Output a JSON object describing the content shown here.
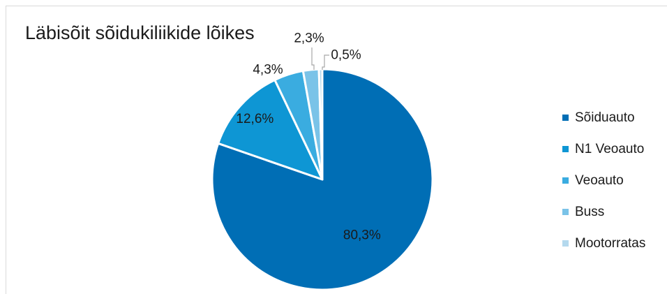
{
  "chart_data": {
    "type": "pie",
    "title": "Läbisõit sõidukiliikide lõikes",
    "categories": [
      "Sõiduauto",
      "N1 Veoauto",
      "Veoauto",
      "Buss",
      "Mootorratas"
    ],
    "values": [
      80.3,
      12.6,
      4.3,
      2.3,
      0.5
    ],
    "labels": [
      "80,3%",
      "12,6%",
      "4,3%",
      "2,3%",
      "0,5%"
    ],
    "colors": [
      "#006EB5",
      "#0E96D4",
      "#3AACE0",
      "#7AC3E8",
      "#B4D9EE"
    ],
    "legend_position": "right"
  }
}
